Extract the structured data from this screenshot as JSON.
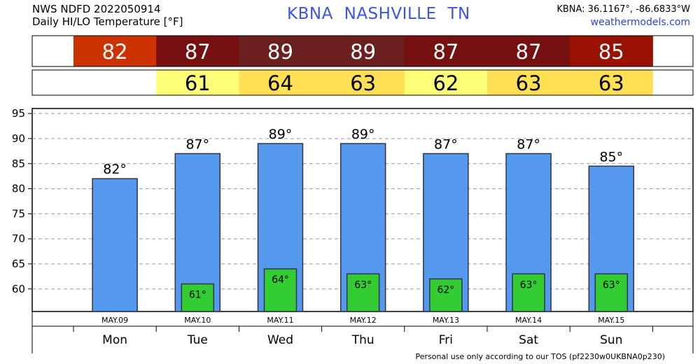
{
  "header": {
    "line1": "NWS NDFD 2022050914",
    "line2": "Daily HI/LO Temperature [°F]",
    "title": "KBNA  NASHVILLE     TN",
    "coords": "KBNA: 36.1167°, -86.6833°W",
    "site": "weathermodels.com"
  },
  "footer": "Personal use only according to our TOS (pf2230w0UKBNA0p230)",
  "colors": {
    "hi_bar": "#5599ee",
    "lo_bar": "#33cc33",
    "hi_row": [
      "#cc3300",
      "#771111",
      "#6b1f1f",
      "#6b1f1f",
      "#771111",
      "#771111",
      "#991100"
    ],
    "lo_row": [
      "#ffff77",
      "#ffe055",
      "#ffe055",
      "#ffff77",
      "#ffe055",
      "#ffe055"
    ]
  },
  "chart_data": {
    "type": "bar",
    "categories": [
      "Mon",
      "Tue",
      "Wed",
      "Thu",
      "Fri",
      "Sat",
      "Sun"
    ],
    "dates": [
      "MAY.09",
      "MAY.10",
      "MAY.11",
      "MAY.12",
      "MAY.13",
      "MAY.14",
      "MAY.15"
    ],
    "series": [
      {
        "values": [
          82,
          87,
          89,
          89,
          87,
          87,
          84.5
        ],
        "labels": [
          "82°",
          "87°",
          "89°",
          "89°",
          "87°",
          "87°",
          "85°"
        ]
      },
      {
        "values": [
          null,
          61,
          64,
          63,
          62,
          63,
          63
        ],
        "labels": [
          "",
          "61°",
          "64°",
          "63°",
          "62°",
          "63°",
          "63°"
        ]
      }
    ],
    "hi_row": [
      "82",
      "87",
      "89",
      "89",
      "87",
      "87",
      "85"
    ],
    "lo_row": [
      "",
      "61",
      "64",
      "63",
      "62",
      "63",
      "63"
    ],
    "yticks": [
      60,
      65,
      70,
      75,
      80,
      85,
      90,
      95
    ],
    "ylim": [
      55.5,
      96
    ],
    "grid": "horizontal dashed"
  }
}
